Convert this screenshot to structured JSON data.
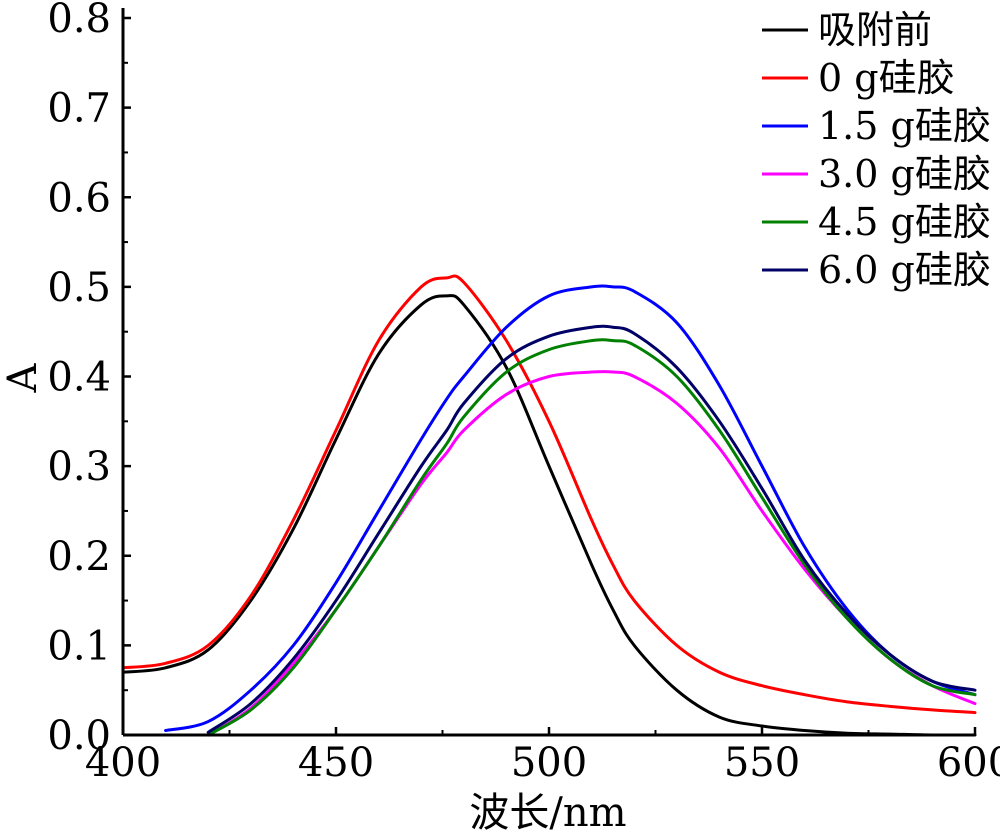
{
  "chart_data": {
    "type": "line",
    "title": "",
    "xlabel": "波长/nm",
    "ylabel": "A",
    "xlim": [
      400,
      600
    ],
    "ylim": [
      0.0,
      0.8
    ],
    "x_ticks": [
      400,
      450,
      500,
      550,
      600
    ],
    "x_tick_labels": [
      "400",
      "450",
      "500",
      "550",
      "600"
    ],
    "y_ticks": [
      0.0,
      0.1,
      0.2,
      0.3,
      0.4,
      0.5,
      0.6,
      0.7,
      0.8
    ],
    "y_tick_labels": [
      "0.0",
      "0.1",
      "0.2",
      "0.3",
      "0.4",
      "0.5",
      "0.6",
      "0.7",
      "0.8"
    ],
    "grid": false,
    "legend_position": "top-right",
    "x": [
      400,
      410,
      420,
      430,
      440,
      450,
      460,
      470,
      476,
      480,
      490,
      500,
      510,
      515,
      520,
      530,
      540,
      550,
      560,
      570,
      580,
      590,
      600
    ],
    "series": [
      {
        "name": "吸附前",
        "color": "#000000",
        "values": [
          0.07,
          0.075,
          0.095,
          0.15,
          0.23,
          0.33,
          0.425,
          0.48,
          0.49,
          0.48,
          0.41,
          0.3,
          0.19,
          0.14,
          0.1,
          0.05,
          0.02,
          0.01,
          0.005,
          0.002,
          0.001,
          0.0,
          0.0
        ]
      },
      {
        "name": "0 g硅胶",
        "color": "#ff0000",
        "values": [
          0.075,
          0.08,
          0.1,
          0.155,
          0.24,
          0.34,
          0.44,
          0.5,
          0.51,
          0.505,
          0.44,
          0.35,
          0.24,
          0.19,
          0.15,
          0.1,
          0.07,
          0.055,
          0.045,
          0.037,
          0.032,
          0.028,
          0.025
        ]
      },
      {
        "name": "1.5 g硅胶",
        "color": "#0000ff",
        "values": [
          null,
          0.005,
          0.015,
          0.05,
          0.1,
          0.17,
          0.25,
          0.33,
          0.375,
          0.4,
          0.455,
          0.49,
          0.5,
          0.5,
          0.495,
          0.46,
          0.39,
          0.3,
          0.21,
          0.14,
          0.09,
          0.06,
          0.045
        ]
      },
      {
        "name": "3.0 g硅胶",
        "color": "#ff00ff",
        "values": [
          null,
          null,
          0.0,
          0.03,
          0.08,
          0.14,
          0.21,
          0.28,
          0.315,
          0.34,
          0.38,
          0.4,
          0.405,
          0.405,
          0.4,
          0.37,
          0.32,
          0.25,
          0.185,
          0.13,
          0.085,
          0.055,
          0.035
        ]
      },
      {
        "name": "4.5 g硅胶",
        "color": "#008000",
        "values": [
          null,
          null,
          0.0,
          0.028,
          0.075,
          0.14,
          0.21,
          0.285,
          0.325,
          0.355,
          0.405,
          0.43,
          0.44,
          0.44,
          0.435,
          0.4,
          0.34,
          0.265,
          0.19,
          0.13,
          0.085,
          0.055,
          0.045
        ]
      },
      {
        "name": "6.0 g硅胶",
        "color": "#000066",
        "values": [
          null,
          null,
          0.003,
          0.035,
          0.085,
          0.15,
          0.225,
          0.3,
          0.34,
          0.37,
          0.42,
          0.445,
          0.455,
          0.455,
          0.448,
          0.41,
          0.35,
          0.275,
          0.195,
          0.135,
          0.09,
          0.06,
          0.05
        ]
      }
    ]
  }
}
